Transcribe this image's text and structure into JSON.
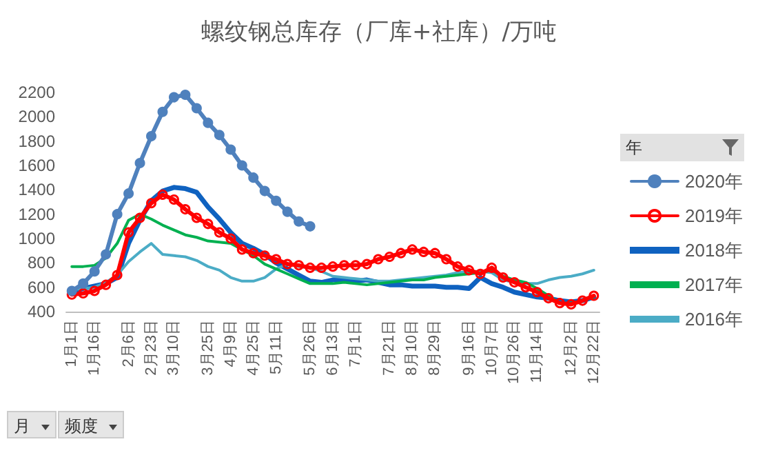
{
  "chart_data": {
    "type": "line",
    "title": "螺纹钢总库存（厂库+社库）/万吨",
    "legend_title": "年",
    "annotations": [
      "月",
      "频度"
    ],
    "categories": [
      "1月1日",
      null,
      "1月16日",
      null,
      null,
      "2月6日",
      null,
      "2月23日",
      null,
      "3月10日",
      null,
      null,
      "3月25日",
      null,
      "4月9日",
      null,
      "4月25日",
      null,
      "5月11日",
      null,
      null,
      "5月26日",
      null,
      "6月13日",
      null,
      "7月1日",
      null,
      null,
      "7月21日",
      null,
      "8月10日",
      null,
      "8月29日",
      null,
      null,
      "9月16日",
      null,
      "10月7日",
      null,
      "10月26日",
      null,
      "11月14日",
      null,
      null,
      "12月2日",
      null,
      "12月22日"
    ],
    "series": [
      {
        "name": "2020年",
        "color": "#4f81bd",
        "marker": "circle",
        "values": [
          570,
          630,
          730,
          870,
          1200,
          1370,
          1620,
          1840,
          2040,
          2160,
          2180,
          2070,
          1950,
          1850,
          1730,
          1600,
          1500,
          1390,
          1310,
          1220,
          1140,
          1100,
          null,
          null,
          null,
          null,
          null,
          null,
          null,
          null,
          null,
          null,
          null,
          null,
          null,
          null,
          null,
          null,
          null,
          null,
          null,
          null,
          null,
          null,
          null,
          null,
          null
        ]
      },
      {
        "name": "2019年",
        "color": "#ff0000",
        "marker": "circle",
        "values": [
          540,
          550,
          570,
          620,
          700,
          1050,
          1170,
          1290,
          1360,
          1320,
          1240,
          1170,
          1120,
          1050,
          1000,
          910,
          880,
          860,
          830,
          790,
          780,
          760,
          760,
          770,
          780,
          780,
          790,
          830,
          850,
          880,
          910,
          890,
          880,
          830,
          770,
          740,
          710,
          760,
          680,
          640,
          600,
          560,
          510,
          470,
          460,
          490,
          530
        ]
      },
      {
        "name": "2018年",
        "color": "#0f62c0",
        "marker": "none",
        "values": [
          560,
          590,
          610,
          630,
          680,
          960,
          1150,
          1310,
          1390,
          1420,
          1410,
          1380,
          1260,
          1160,
          1050,
          960,
          920,
          870,
          800,
          750,
          700,
          650,
          640,
          660,
          660,
          650,
          660,
          640,
          620,
          620,
          610,
          610,
          610,
          600,
          600,
          590,
          680,
          630,
          600,
          560,
          540,
          520,
          510,
          490,
          480,
          490,
          520
        ]
      },
      {
        "name": "2017年",
        "color": "#00b050",
        "marker": "none",
        "values": [
          770,
          770,
          780,
          840,
          960,
          1150,
          1200,
          1160,
          1110,
          1070,
          1030,
          1010,
          980,
          970,
          960,
          910,
          860,
          790,
          750,
          710,
          670,
          630,
          630,
          630,
          640,
          630,
          620,
          630,
          640,
          650,
          660,
          660,
          680,
          690,
          700,
          710,
          720,
          740,
          690,
          660,
          640,
          590,
          530,
          470,
          470,
          490,
          520
        ]
      },
      {
        "name": "2016年",
        "color": "#4bacc6",
        "marker": "none",
        "values": [
          580,
          590,
          600,
          640,
          700,
          810,
          890,
          960,
          870,
          860,
          850,
          820,
          770,
          740,
          680,
          650,
          650,
          680,
          750,
          790,
          770,
          760,
          730,
          690,
          680,
          670,
          660,
          650,
          650,
          660,
          670,
          680,
          690,
          700,
          720,
          730,
          730,
          720,
          660,
          640,
          630,
          630,
          660,
          680,
          690,
          710,
          740
        ]
      }
    ],
    "ylim": [
      400,
      2200
    ],
    "yticks": [
      400,
      600,
      800,
      1000,
      1200,
      1400,
      1600,
      1800,
      2000,
      2200
    ],
    "grid": false,
    "legend": "right"
  }
}
